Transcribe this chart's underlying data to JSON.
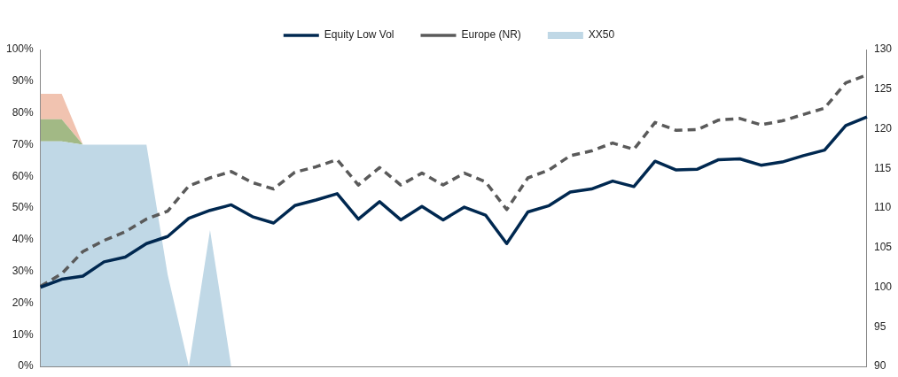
{
  "chart_data": {
    "type": "area",
    "stacked": true,
    "legend": "top",
    "marker": "none",
    "categories": [
      null,
      null,
      null,
      null,
      null,
      null,
      null,
      null,
      null,
      null,
      null,
      null,
      null,
      null,
      null,
      null,
      null,
      null,
      null,
      null,
      null,
      null,
      null,
      null,
      null,
      null,
      null,
      null,
      null,
      null,
      null,
      null,
      null,
      null,
      null,
      null,
      null,
      null,
      null,
      null
    ],
    "ylim": [
      0,
      100
    ],
    "yticks": [
      {
        "value": 0,
        "label": "0%"
      },
      {
        "value": 10,
        "label": "10%"
      },
      {
        "value": 20,
        "label": "20%"
      },
      {
        "value": 30,
        "label": "30%"
      },
      {
        "value": 40,
        "label": "40%"
      },
      {
        "value": 50,
        "label": "50%"
      },
      {
        "value": 60,
        "label": "60%"
      },
      {
        "value": 70,
        "label": "70%"
      },
      {
        "value": 80,
        "label": "80%"
      },
      {
        "value": 90,
        "label": "90%"
      },
      {
        "value": 100,
        "label": "100%"
      }
    ],
    "y2lim": [
      90,
      130
    ],
    "y2ticks": [
      90,
      95,
      100,
      105,
      110,
      115,
      120,
      125,
      130
    ],
    "series": [
      {
        "name": "XX50",
        "color": "#c0d8e6",
        "values": [
          71,
          71,
          70,
          70,
          70,
          70,
          29,
          0,
          43,
          0,
          null,
          null,
          null,
          null,
          null,
          null,
          null,
          null,
          null,
          null,
          null,
          null,
          null,
          null,
          null,
          null,
          null,
          null,
          null,
          null,
          null,
          null,
          null,
          null,
          null,
          null,
          null,
          null,
          null,
          null
        ]
      },
      {
        "color": "#a2b985",
        "values": [
          7,
          7,
          0,
          0,
          0,
          0,
          0,
          0,
          0,
          0,
          null,
          null,
          null,
          null,
          null,
          null,
          null,
          null,
          null,
          null,
          null,
          null,
          null,
          null,
          null,
          null,
          null,
          null,
          null,
          null,
          null,
          null,
          null,
          null,
          null,
          null,
          null,
          null,
          null,
          null
        ]
      },
      {
        "color": "#f1c3b0",
        "values": [
          8,
          8,
          0,
          0,
          0,
          0,
          0,
          0,
          0,
          0,
          null,
          null,
          null,
          null,
          null,
          null,
          null,
          null,
          null,
          null,
          null,
          null,
          null,
          null,
          null,
          null,
          null,
          null,
          null,
          null,
          null,
          null,
          null,
          null,
          null,
          null,
          null,
          null,
          null,
          null
        ]
      },
      {
        "name": "Equity Low Vol",
        "type": "line",
        "axis": "y2",
        "color": "#002850",
        "line_style": "solid",
        "values": [
          100.0,
          101.0,
          101.4,
          103.2,
          103.8,
          105.5,
          106.4,
          108.7,
          109.7,
          110.4,
          108.9,
          108.1,
          110.3,
          111.0,
          111.8,
          108.6,
          110.8,
          108.5,
          110.2,
          108.5,
          110.1,
          109.1,
          105.5,
          109.5,
          110.3,
          112.0,
          112.4,
          113.4,
          112.7,
          115.9,
          114.8,
          114.9,
          116.1,
          116.2,
          115.4,
          115.8,
          116.6,
          117.3,
          120.4,
          121.5
        ]
      },
      {
        "name": "Europe (NR)",
        "type": "line",
        "axis": "y2",
        "color": "#5a5a5a",
        "line_style": "dashed",
        "values": [
          100.1,
          101.7,
          104.5,
          105.9,
          107.0,
          108.6,
          109.6,
          112.8,
          113.8,
          114.6,
          113.2,
          112.4,
          114.5,
          115.2,
          116.1,
          112.9,
          115.1,
          112.9,
          114.4,
          112.9,
          114.4,
          113.3,
          109.8,
          113.8,
          114.8,
          116.6,
          117.2,
          118.2,
          117.4,
          120.8,
          119.8,
          119.9,
          121.1,
          121.3,
          120.5,
          121.0,
          121.8,
          122.6,
          125.8,
          126.8
        ]
      }
    ]
  }
}
